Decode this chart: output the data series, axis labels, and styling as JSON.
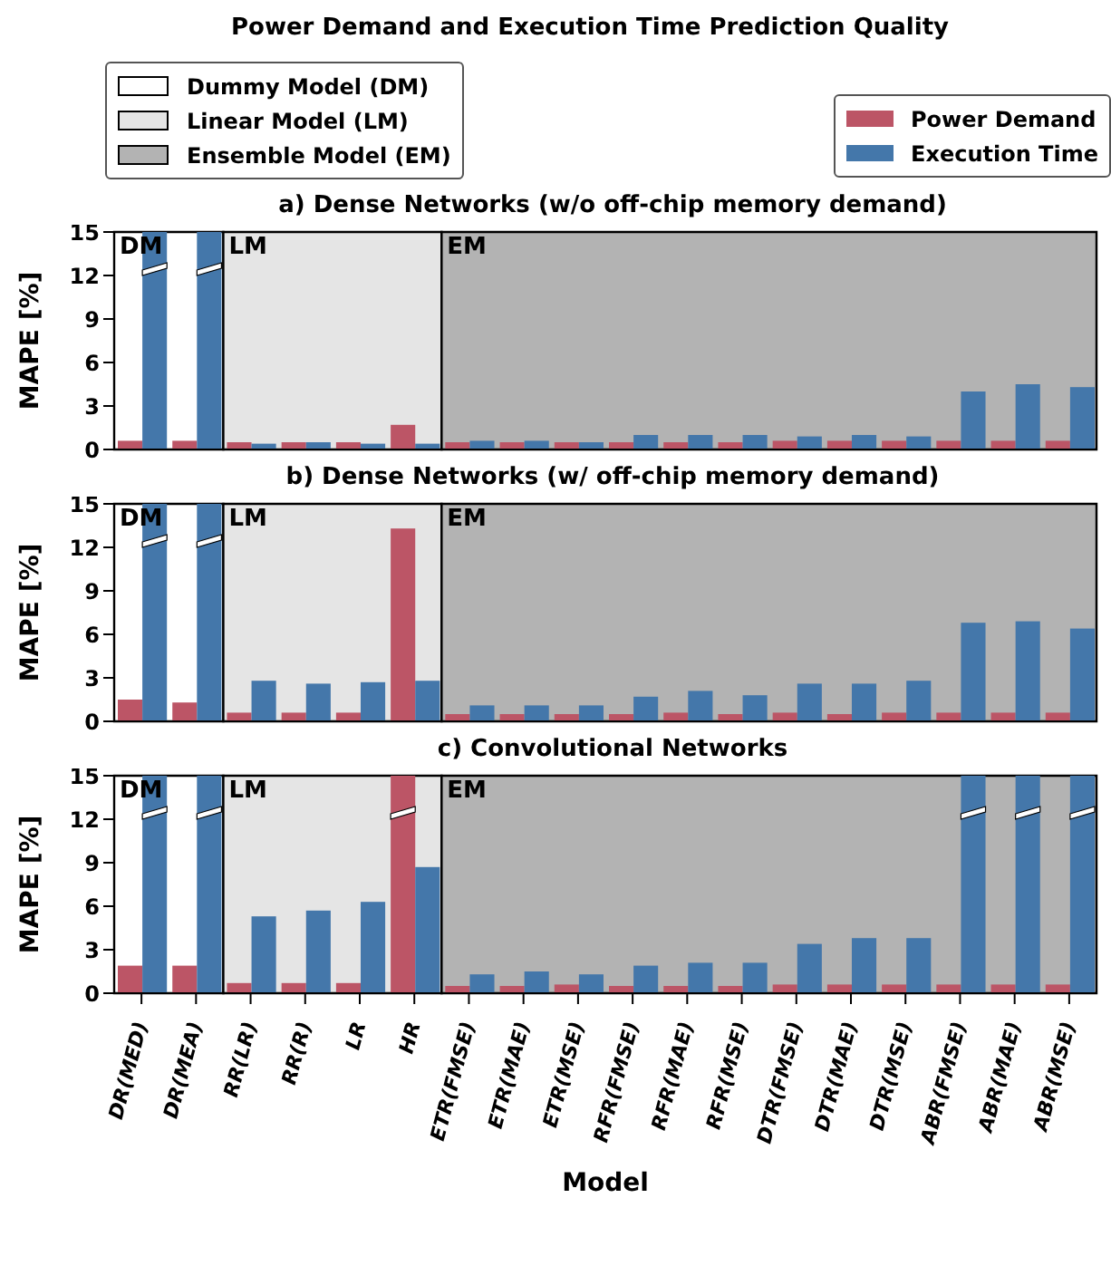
{
  "chart_data": [
    {
      "type": "bar",
      "title": "Power Demand and Execution Time Prediction Quality",
      "subtitle": "a) Dense Networks (w/o off-chip memory demand)",
      "ylabel": "MAPE [%]",
      "categories": [
        "DR(MED)",
        "DR(MEA)",
        "RR(LR)",
        "RR(R)",
        "LR",
        "HR",
        "ETR(FMSE)",
        "ETR(MAE)",
        "ETR(MSE)",
        "RFR(FMSE)",
        "RFR(MAE)",
        "RFR(MSE)",
        "DTR(FMSE)",
        "DTR(MAE)",
        "DTR(MSE)",
        "ABR(FMSE)",
        "ABR(MAE)",
        "ABR(MSE)"
      ],
      "series": [
        {
          "name": "Power Demand",
          "color": "#bc5566",
          "values": [
            0.6,
            0.6,
            0.5,
            0.5,
            0.5,
            1.7,
            0.5,
            0.5,
            0.5,
            0.5,
            0.5,
            0.5,
            0.6,
            0.6,
            0.6,
            0.6,
            0.6,
            0.6
          ]
        },
        {
          "name": "Execution Time",
          "color": "#4477aa",
          "values": [
            15,
            15,
            0.4,
            0.5,
            0.4,
            0.4,
            0.6,
            0.6,
            0.5,
            1.0,
            1.0,
            1.0,
            0.9,
            1.0,
            0.9,
            4.0,
            4.5,
            4.3
          ]
        }
      ],
      "bands": [
        {
          "axis": "x",
          "from": "DR(MED)",
          "to": "DR(MEA)",
          "label": "DM",
          "color": "#ffffff"
        },
        {
          "axis": "x",
          "from": "RR(LR)",
          "to": "HR",
          "label": "LM",
          "color": "#e5e5e5"
        },
        {
          "axis": "x",
          "from": "ETR(FMSE)",
          "to": "ABR(MSE)",
          "label": "EM",
          "color": "#b3b3b3"
        }
      ],
      "annotations": [
        "Dummy Model (DM)",
        "Linear Model (LM)",
        "Ensemble Model (EM)"
      ],
      "ylim": [
        0,
        15
      ],
      "yticks": [
        0,
        3,
        6,
        9,
        12,
        15
      ],
      "legend": "top right",
      "tick_labels": "y"
    },
    {
      "type": "bar",
      "subtitle": "b) Dense Networks (w/ off-chip memory demand)",
      "ylabel": "MAPE [%]",
      "categories": [
        "DR(MED)",
        "DR(MEA)",
        "RR(LR)",
        "RR(R)",
        "LR",
        "HR",
        "ETR(FMSE)",
        "ETR(MAE)",
        "ETR(MSE)",
        "RFR(FMSE)",
        "RFR(MAE)",
        "RFR(MSE)",
        "DTR(FMSE)",
        "DTR(MAE)",
        "DTR(MSE)",
        "ABR(FMSE)",
        "ABR(MAE)",
        "ABR(MSE)"
      ],
      "series": [
        {
          "color": "#bc5566",
          "values": [
            1.5,
            1.3,
            0.6,
            0.6,
            0.6,
            13.3,
            0.5,
            0.5,
            0.5,
            0.5,
            0.6,
            0.5,
            0.6,
            0.5,
            0.6,
            0.6,
            0.6,
            0.6
          ]
        },
        {
          "color": "#4477aa",
          "values": [
            15,
            15,
            2.8,
            2.6,
            2.7,
            2.8,
            1.1,
            1.1,
            1.1,
            1.7,
            2.1,
            1.8,
            2.6,
            2.6,
            2.8,
            6.8,
            6.9,
            6.4
          ]
        }
      ],
      "bands": [
        {
          "axis": "x",
          "from": "DR(MED)",
          "to": "DR(MEA)",
          "label": "DM",
          "color": "#ffffff"
        },
        {
          "axis": "x",
          "from": "RR(LR)",
          "to": "HR",
          "label": "LM",
          "color": "#e5e5e5"
        },
        {
          "axis": "x",
          "from": "ETR(FMSE)",
          "to": "ABR(MSE)",
          "label": "EM",
          "color": "#b3b3b3"
        }
      ],
      "ylim": [
        0,
        15
      ],
      "yticks": [
        0,
        3,
        6,
        9,
        12,
        15
      ],
      "tick_labels": "y"
    },
    {
      "type": "bar",
      "subtitle": "c) Convolutional Networks",
      "xlabel": "Model",
      "ylabel": "MAPE [%]",
      "categories": [
        "DR(MED)",
        "DR(MEA)",
        "RR(LR)",
        "RR(R)",
        "LR",
        "HR",
        "ETR(FMSE)",
        "ETR(MAE)",
        "ETR(MSE)",
        "RFR(FMSE)",
        "RFR(MAE)",
        "RFR(MSE)",
        "DTR(FMSE)",
        "DTR(MAE)",
        "DTR(MSE)",
        "ABR(FMSE)",
        "ABR(MAE)",
        "ABR(MSE)"
      ],
      "series": [
        {
          "color": "#bc5566",
          "values": [
            1.9,
            1.9,
            0.7,
            0.7,
            0.7,
            15,
            0.5,
            0.5,
            0.6,
            0.5,
            0.5,
            0.5,
            0.6,
            0.6,
            0.6,
            0.6,
            0.6,
            0.6
          ]
        },
        {
          "color": "#4477aa",
          "values": [
            15,
            15,
            5.3,
            5.7,
            6.3,
            8.7,
            1.3,
            1.5,
            1.3,
            1.9,
            2.1,
            2.1,
            3.4,
            3.8,
            3.8,
            15,
            15,
            15
          ]
        }
      ],
      "bands": [
        {
          "axis": "x",
          "from": "DR(MED)",
          "to": "DR(MEA)",
          "label": "DM",
          "color": "#ffffff"
        },
        {
          "axis": "x",
          "from": "RR(LR)",
          "to": "HR",
          "label": "LM",
          "color": "#e5e5e5"
        },
        {
          "axis": "x",
          "from": "ETR(FMSE)",
          "to": "ABR(MSE)",
          "label": "EM",
          "color": "#b3b3b3"
        }
      ],
      "ylim": [
        0,
        15
      ],
      "yticks": [
        0,
        3,
        6,
        9,
        12,
        15
      ]
    }
  ]
}
